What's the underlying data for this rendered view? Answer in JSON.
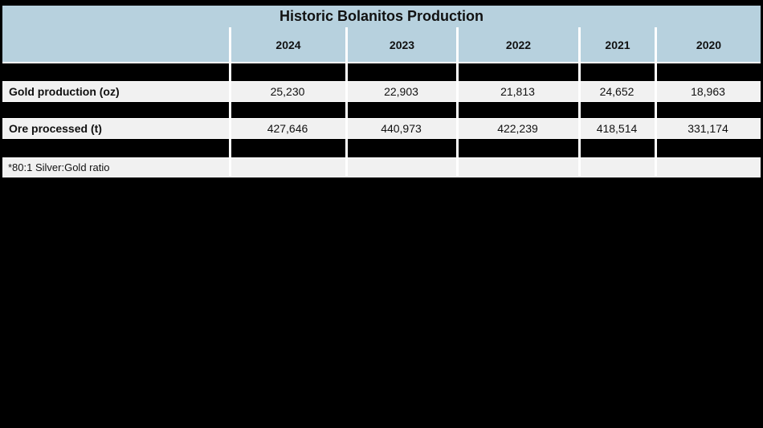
{
  "chart_data": {
    "type": "table",
    "title": "Historic Bolanitos Production",
    "categories": [
      "2024",
      "2023",
      "2022",
      "2021",
      "2020"
    ],
    "series": [
      {
        "name": "Gold production (oz)",
        "values": [
          "25,230",
          "22,903",
          "21,813",
          "24,652",
          "18,963"
        ]
      },
      {
        "name": "Ore processed (t)",
        "values": [
          "427,646",
          "440,973",
          "422,239",
          "418,514",
          "331,174"
        ]
      }
    ],
    "footnote": "*80:1 Silver:Gold ratio",
    "layout_hints": {
      "hidden_blacked_out_rows": 3,
      "header_position": "top",
      "grid": "white separator lines between cells"
    }
  },
  "colors": {
    "page_bg": "#000000",
    "header_bg": "#b7d1de",
    "data_row_bg": "#f1f1f1",
    "hidden_row_bg": "#000000",
    "separator": "#ffffff",
    "text": "#111111"
  }
}
